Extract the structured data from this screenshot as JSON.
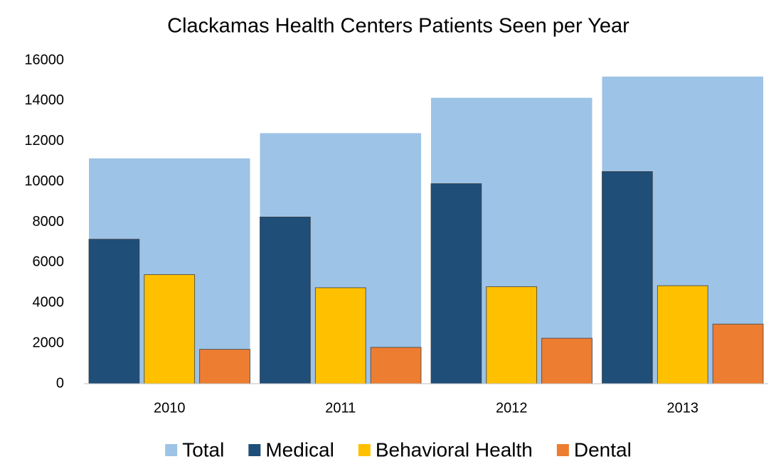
{
  "chart_data": {
    "type": "bar",
    "title": "Clackamas Health Centers Patients Seen per Year",
    "categories": [
      "2010",
      "2011",
      "2012",
      "2013"
    ],
    "series": [
      {
        "name": "Total",
        "color": "#9dc3e6",
        "values": [
          11150,
          12400,
          14150,
          15200
        ]
      },
      {
        "name": "Medical",
        "color": "#1f4e79",
        "values": [
          7150,
          8250,
          9900,
          10500
        ]
      },
      {
        "name": "Behavioral Health",
        "color": "#ffc000",
        "values": [
          5400,
          4750,
          4800,
          4850
        ]
      },
      {
        "name": "Dental",
        "color": "#ed7d31",
        "values": [
          1700,
          1800,
          2250,
          2950
        ]
      }
    ],
    "ylim": [
      0,
      16000
    ],
    "yticks": [
      0,
      2000,
      4000,
      6000,
      8000,
      10000,
      12000,
      14000,
      16000
    ],
    "grid": false,
    "legend": "bottom"
  }
}
